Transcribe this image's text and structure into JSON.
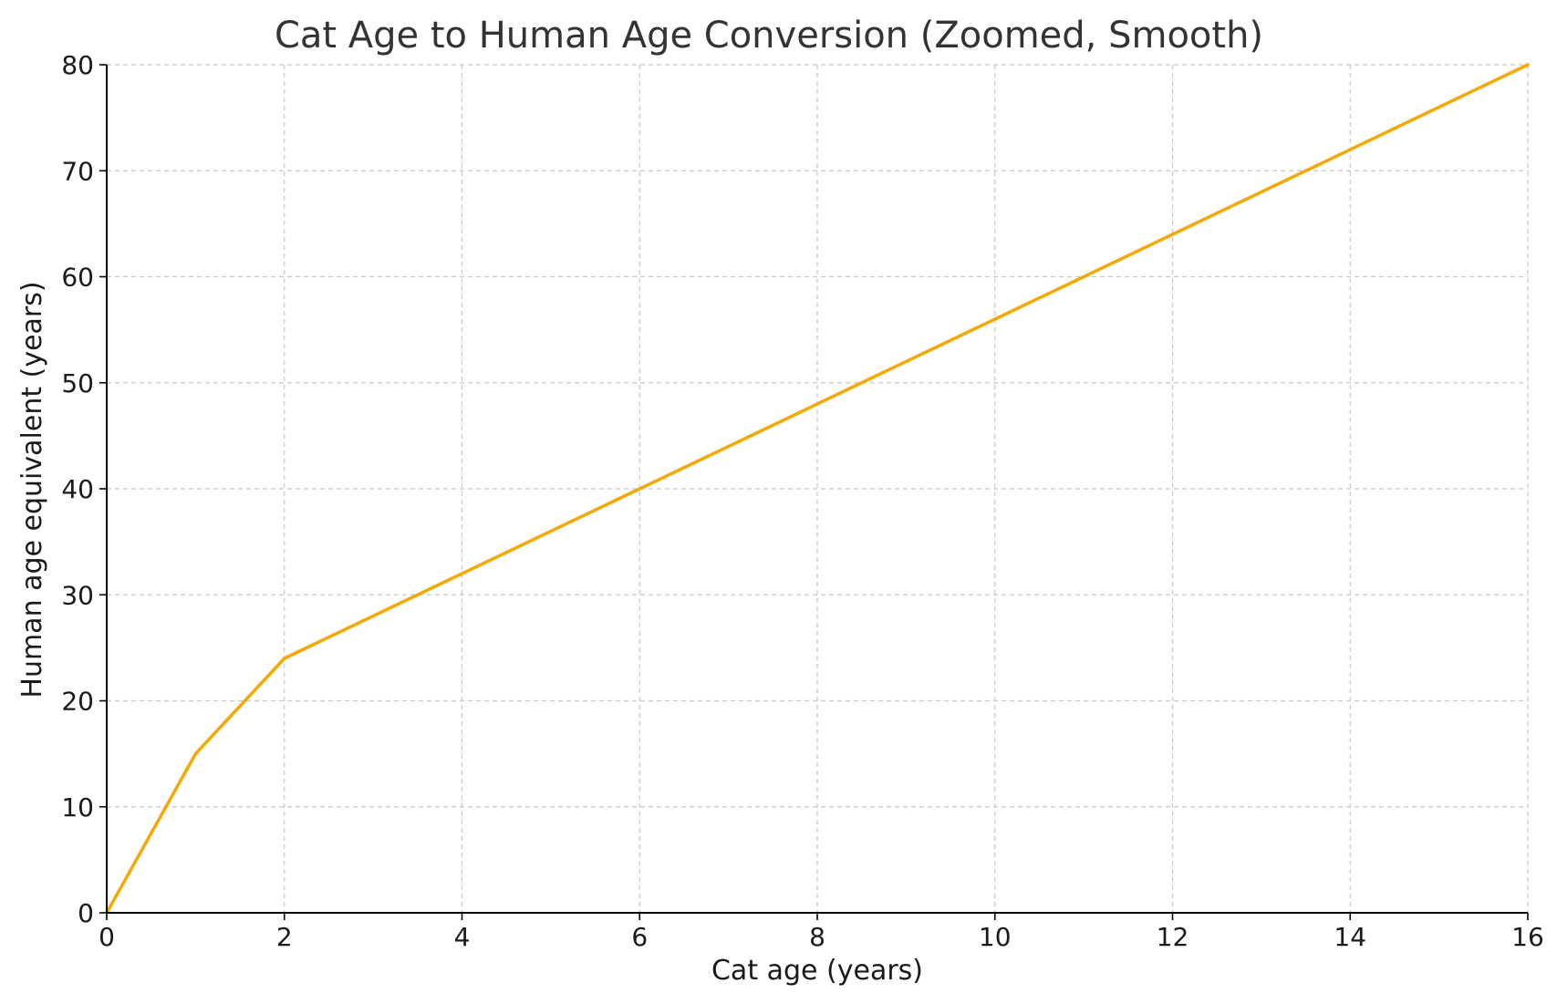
{
  "chart_data": {
    "type": "line",
    "title": "Cat Age to Human Age Conversion (Zoomed, Smooth)",
    "xlabel": "Cat age (years)",
    "ylabel": "Human age equivalent (years)",
    "xlim": [
      0,
      16
    ],
    "ylim": [
      0,
      80
    ],
    "xticks": [
      0,
      2,
      4,
      6,
      8,
      10,
      12,
      14,
      16
    ],
    "yticks": [
      0,
      10,
      20,
      30,
      40,
      50,
      60,
      70,
      80
    ],
    "grid": true,
    "series": [
      {
        "color": "#f5a800",
        "x": [
          0,
          1,
          2,
          16
        ],
        "y": [
          0,
          15,
          24,
          80
        ]
      }
    ]
  }
}
